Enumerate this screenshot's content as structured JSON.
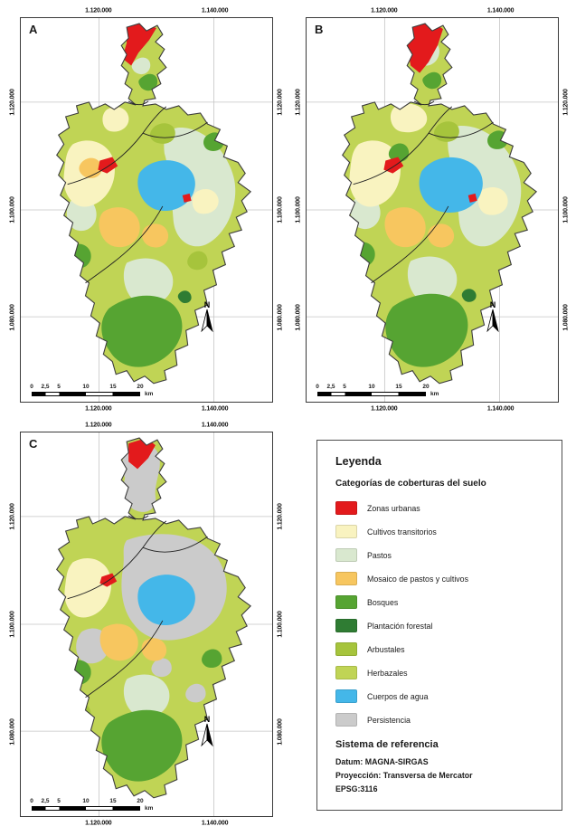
{
  "figure": {
    "panels": [
      {
        "id": "A",
        "label": "A"
      },
      {
        "id": "B",
        "label": "B"
      },
      {
        "id": "C",
        "label": "C"
      }
    ],
    "axis": {
      "x_labels": [
        "1.120.000",
        "1.140.000"
      ],
      "y_labels": [
        "1.120.000",
        "1.100.000",
        "1.080.000"
      ]
    },
    "scalebar": {
      "ticks": [
        "0",
        "2,5",
        "5",
        "10",
        "15",
        "20"
      ],
      "unit": "km"
    },
    "north_label": "N"
  },
  "legend": {
    "title": "Leyenda",
    "subtitle": "Categorías de coberturas del suelo",
    "items": [
      {
        "key": "urbanas",
        "label": "Zonas urbanas",
        "color": "#e31a1c"
      },
      {
        "key": "cultivos",
        "label": "Cultivos transitorios",
        "color": "#f9f3c0"
      },
      {
        "key": "pastos",
        "label": "Pastos",
        "color": "#d9e8cf"
      },
      {
        "key": "mosaico",
        "label": "Mosaico de pastos y cultivos",
        "color": "#f7c65f"
      },
      {
        "key": "bosques",
        "label": "Bosques",
        "color": "#56a432"
      },
      {
        "key": "plantacion",
        "label": "Plantación forestal",
        "color": "#2f7c33"
      },
      {
        "key": "arbustales",
        "label": "Arbustales",
        "color": "#a6c43c"
      },
      {
        "key": "herbazales",
        "label": "Herbazales",
        "color": "#c0d455"
      },
      {
        "key": "agua",
        "label": "Cuerpos de agua",
        "color": "#44b7e9"
      },
      {
        "key": "persistencia",
        "label": "Persistencia",
        "color": "#cbcbcb"
      }
    ],
    "reference": {
      "title": "Sistema de referencia",
      "lines": [
        "Datum: MAGNA-SIRGAS",
        "Proyección: Transversa de Mercator",
        "EPSG:3116"
      ]
    }
  }
}
